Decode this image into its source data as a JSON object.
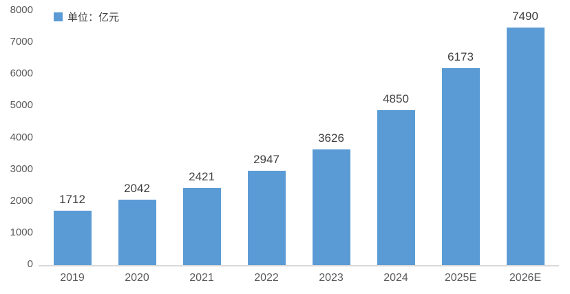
{
  "colors": {
    "bar": "#5B9BD5",
    "axis_line": "#D9D9D9",
    "tick_text": "#595959",
    "value_text": "#404040"
  },
  "legend": {
    "label": "单位：亿元"
  },
  "chart_data": {
    "type": "bar",
    "title": "",
    "xlabel": "",
    "ylabel": "",
    "categories": [
      "2019",
      "2020",
      "2021",
      "2022",
      "2023",
      "2024",
      "2025E",
      "2026E"
    ],
    "values": [
      1712,
      2042,
      2421,
      2947,
      3626,
      4850,
      6173,
      7490
    ],
    "unit": "亿元",
    "legend": "单位：亿元",
    "ylim": [
      0,
      8000
    ],
    "yticks": [
      "8000",
      "7000",
      "6000",
      "5000",
      "4000",
      "3000",
      "2000",
      "1000",
      "0"
    ],
    "grid": false,
    "legend_position": "top-left",
    "data_labels": true
  }
}
